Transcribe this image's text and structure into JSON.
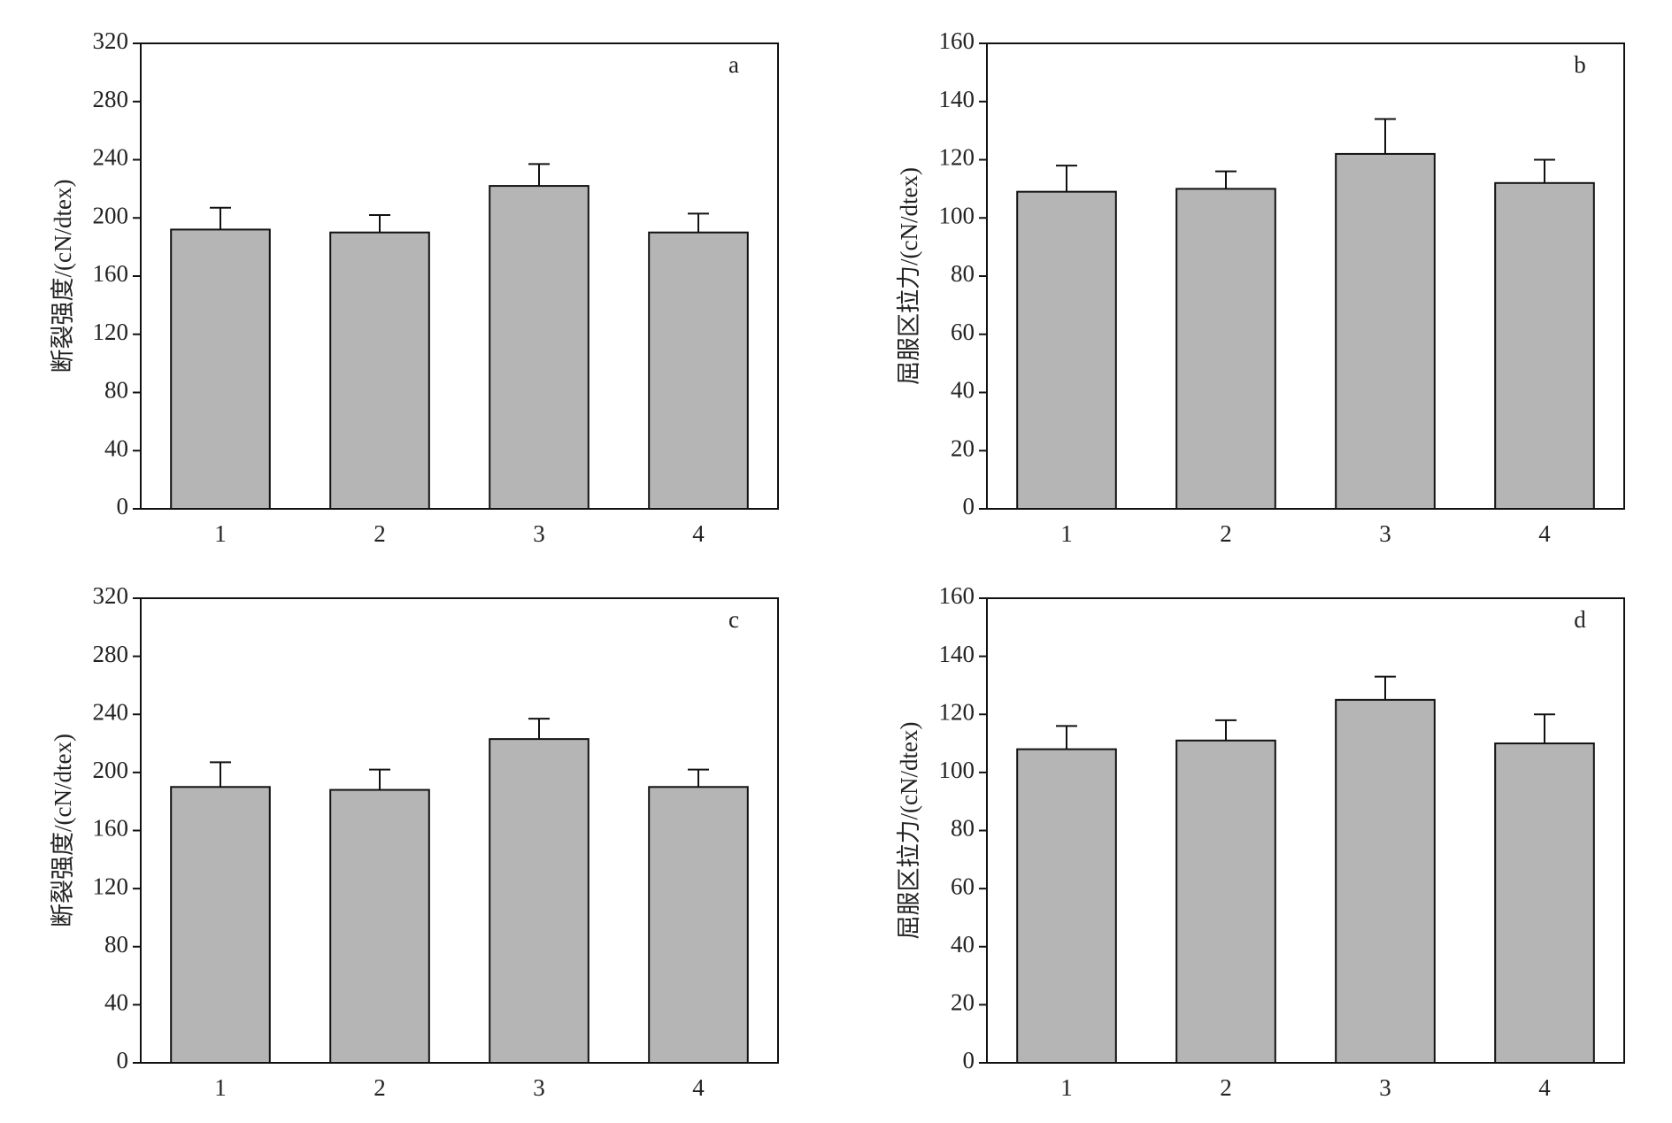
{
  "chart_data": [
    {
      "type": "bar",
      "annotation": "a",
      "ylabel": "断裂强度/(cN/dtex)",
      "categories": [
        "1",
        "2",
        "3",
        "4"
      ],
      "values": [
        192,
        190,
        222,
        190
      ],
      "errors": [
        15,
        12,
        15,
        13
      ],
      "color": "#b4b5b4",
      "ylim": [
        0,
        320
      ],
      "yticks": [
        0,
        40,
        80,
        120,
        160,
        200,
        240,
        280,
        320
      ]
    },
    {
      "type": "bar",
      "annotation": "b",
      "ylabel": "屈服区拉力/(cN/dtex)",
      "categories": [
        "1",
        "2",
        "3",
        "4"
      ],
      "values": [
        109,
        110,
        122,
        112
      ],
      "errors": [
        9,
        6,
        12,
        8
      ],
      "color": "#b4b5b4",
      "ylim": [
        0,
        160
      ],
      "yticks": [
        0,
        20,
        40,
        60,
        80,
        100,
        120,
        140,
        160
      ]
    },
    {
      "type": "bar",
      "annotation": "c",
      "ylabel": "断裂强度/(cN/dtex)",
      "categories": [
        "1",
        "2",
        "3",
        "4"
      ],
      "values": [
        190,
        188,
        223,
        190
      ],
      "errors": [
        17,
        14,
        14,
        12
      ],
      "color": "#b4b5b4",
      "ylim": [
        0,
        320
      ],
      "yticks": [
        0,
        40,
        80,
        120,
        160,
        200,
        240,
        280,
        320
      ]
    },
    {
      "type": "bar",
      "annotation": "d",
      "ylabel": "屈服区拉力/(cN/dtex)",
      "categories": [
        "1",
        "2",
        "3",
        "4"
      ],
      "values": [
        108,
        111,
        125,
        110
      ],
      "errors": [
        8,
        7,
        8,
        10
      ],
      "color": "#b4b5b4",
      "ylim": [
        0,
        160
      ],
      "yticks": [
        0,
        20,
        40,
        60,
        80,
        100,
        120,
        140,
        160
      ]
    }
  ]
}
